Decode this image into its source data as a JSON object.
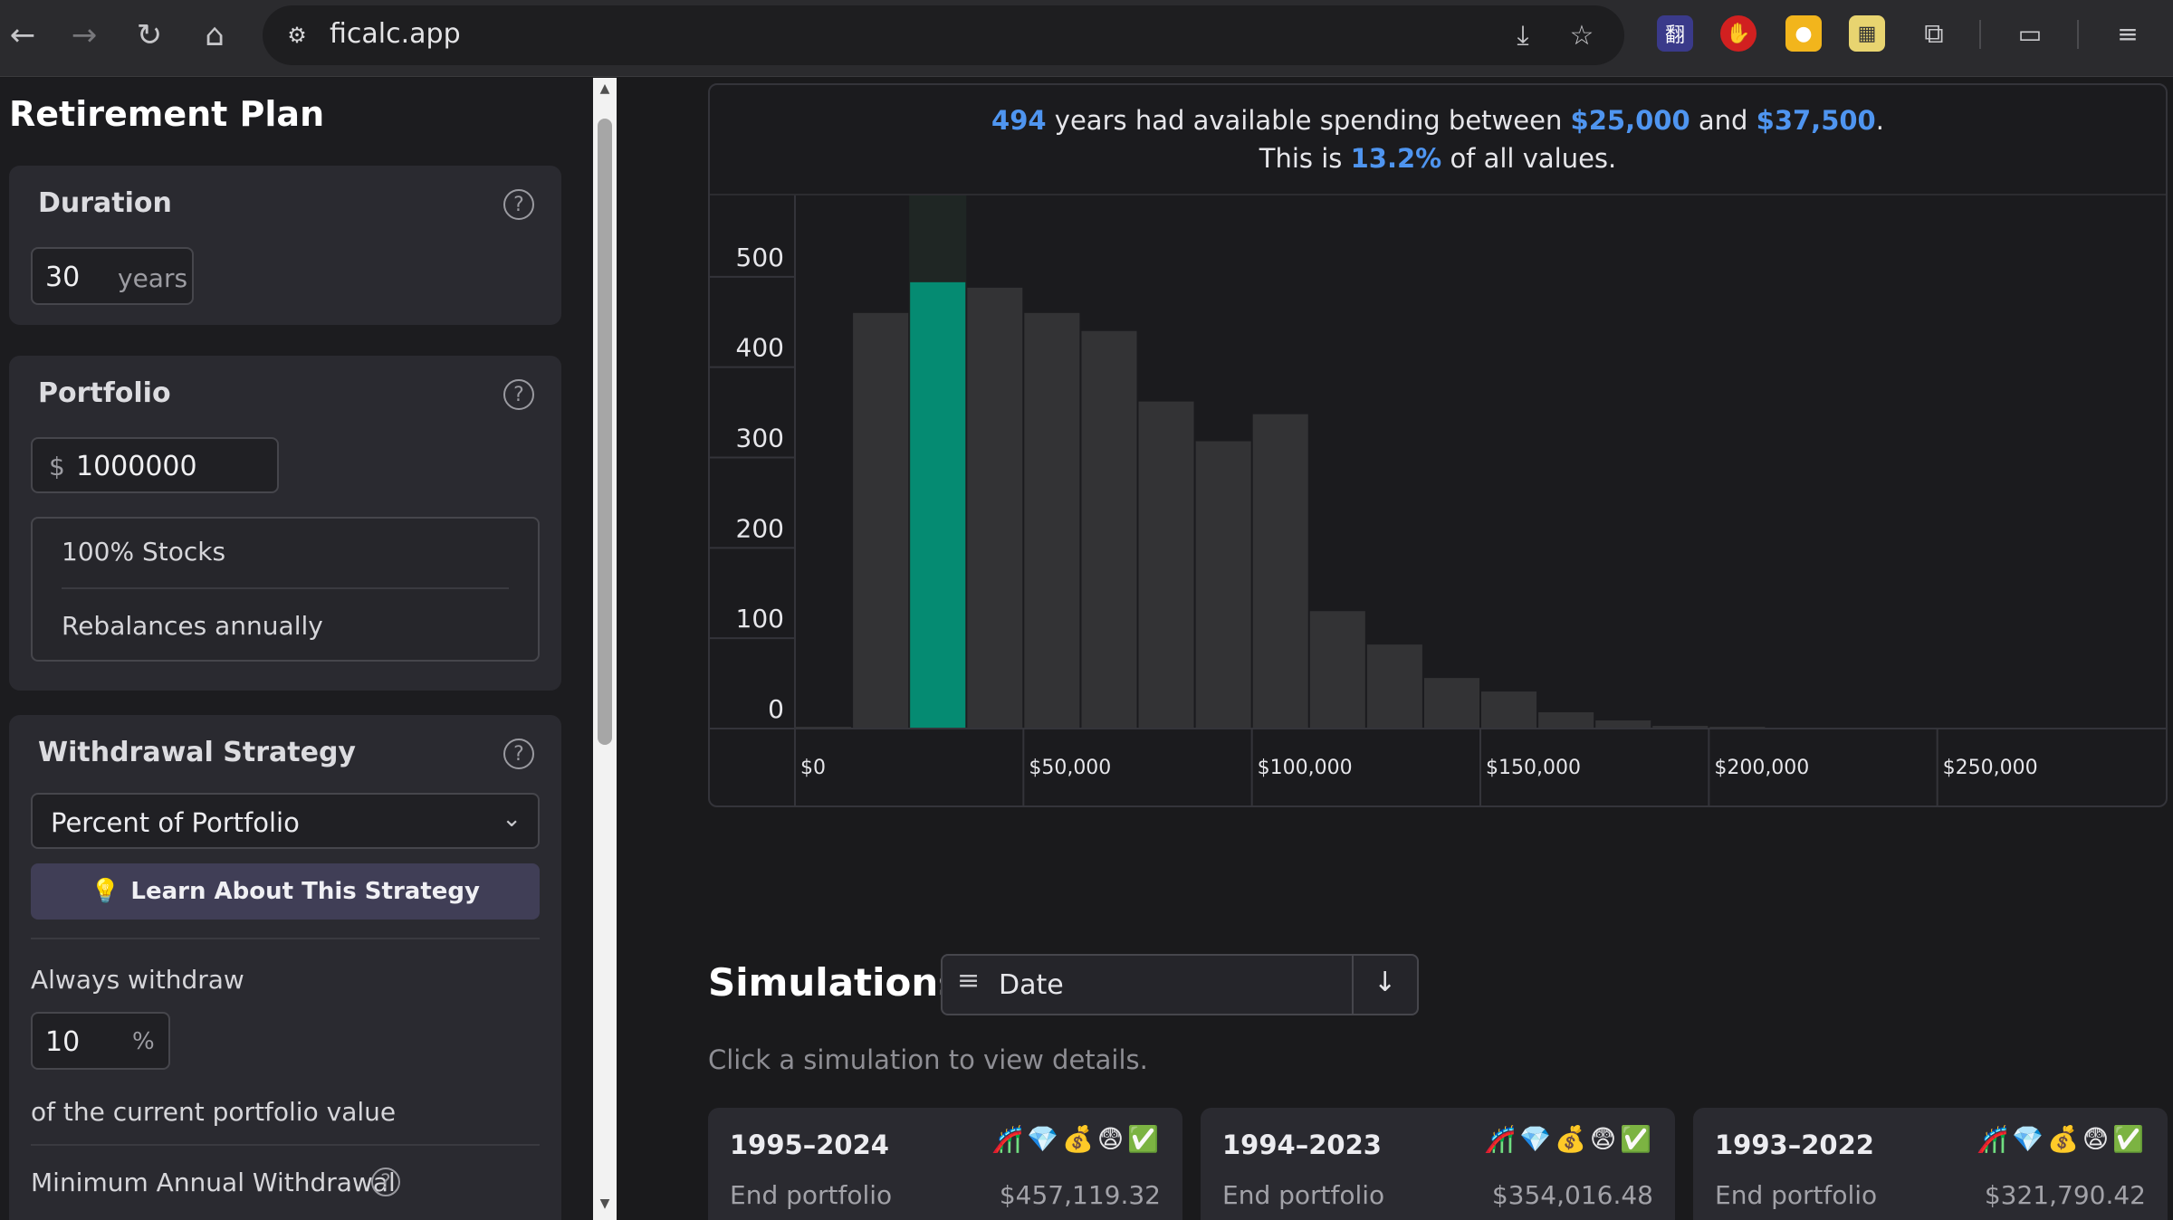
{
  "browser": {
    "url": "ficalc.app"
  },
  "sidebar": {
    "title": "Retirement Plan",
    "duration": {
      "title": "Duration",
      "value": "30",
      "unit": "years"
    },
    "portfolio": {
      "title": "Portfolio",
      "currency": "$",
      "value": "1000000",
      "allocation": "100% Stocks",
      "rebalance": "Rebalances annually"
    },
    "withdrawal": {
      "title": "Withdrawal Strategy",
      "strategy": "Percent of Portfolio",
      "learn_button": "Learn About This Strategy",
      "always_label": "Always withdraw",
      "percent_value": "10",
      "percent_unit": "%",
      "of_label": "of the current portfolio value",
      "minimum_label": "Minimum Annual Withdrawal"
    }
  },
  "summary": {
    "count": "494",
    "text1": "years had available spending between",
    "low": "$25,000",
    "and": "and",
    "high": "$37,500",
    "period": ".",
    "text2": "This is",
    "pct": "13.2%",
    "text3": "of all values."
  },
  "chart_data": {
    "type": "bar",
    "title": "",
    "xlabel": "",
    "ylabel": "",
    "bin_width": 12500,
    "bin_starts": [
      0,
      12500,
      25000,
      37500,
      50000,
      62500,
      75000,
      87500,
      100000,
      112500,
      125000,
      137500,
      150000,
      162500,
      175000,
      187500,
      200000,
      212500,
      225000,
      237500,
      250000,
      262500
    ],
    "values": [
      2,
      460,
      494,
      488,
      460,
      440,
      362,
      318,
      348,
      130,
      93,
      56,
      41,
      18,
      9,
      3,
      2,
      1,
      1,
      0,
      0,
      1
    ],
    "highlight_index": 2,
    "highlight_color": "#058b72",
    "bar_color": "#333335",
    "ylim": [
      0,
      590
    ],
    "yticks": [
      "500",
      "400",
      "300",
      "200",
      "100",
      "0"
    ],
    "ytick_values": [
      500,
      400,
      300,
      200,
      100,
      0
    ],
    "xticks": [
      "$0",
      "$50,000",
      "$100,000",
      "$150,000",
      "$200,000",
      "$250,000"
    ],
    "xtick_values": [
      0,
      50000,
      100000,
      150000,
      200000,
      250000
    ],
    "xlim": [
      0,
      300000
    ],
    "grid": true
  },
  "simulations": {
    "title": "Simulations",
    "sort_label": "Date",
    "hint": "Click a simulation to view details.",
    "items": [
      {
        "years": "1995–2024",
        "emojis": "🎢💎💰😨✅",
        "label": "End portfolio",
        "value": "$457,119.32"
      },
      {
        "years": "1994–2023",
        "emojis": "🎢💎💰😨✅",
        "label": "End portfolio",
        "value": "$354,016.48"
      },
      {
        "years": "1993–2022",
        "emojis": "🎢💎💰😨✅",
        "label": "End portfolio",
        "value": "$321,790.42"
      }
    ]
  }
}
